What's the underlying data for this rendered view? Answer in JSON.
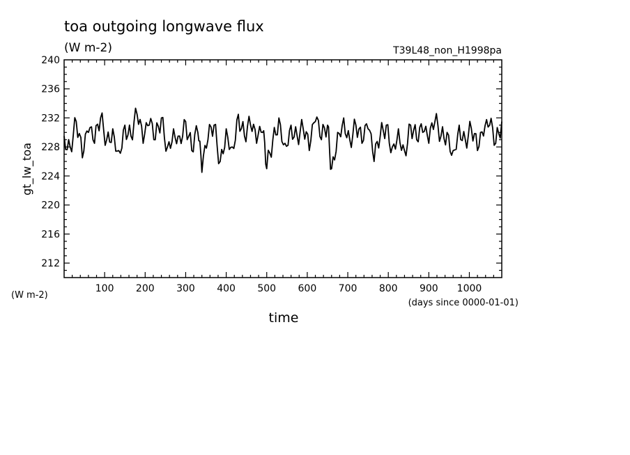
{
  "chart_data": {
    "type": "line",
    "title": "toa outgoing longwave flux",
    "units": "(W m-2)",
    "experiment": "T39L48_non_H1998pa",
    "ylabel": "gt_lw_toa",
    "ylabel_units": "(W m-2)",
    "xlabel": "time",
    "xunits": "(days since 0000-01-01)",
    "xlim": [
      0,
      1080
    ],
    "ylim": [
      210,
      240
    ],
    "xticks": [
      100,
      200,
      300,
      400,
      500,
      600,
      700,
      800,
      900,
      1000
    ],
    "yticks": [
      212,
      216,
      220,
      224,
      228,
      232,
      236,
      240
    ],
    "grid": false,
    "series": [
      {
        "color": "#000000",
        "x": [
          0,
          15,
          30,
          45,
          60,
          75,
          90,
          105,
          120,
          135,
          150,
          165,
          180,
          195,
          210,
          225,
          240,
          255,
          270,
          285,
          300,
          315,
          330,
          340,
          355,
          370,
          385,
          400,
          415,
          430,
          445,
          460,
          475,
          490,
          500,
          515,
          530,
          545,
          560,
          575,
          590,
          605,
          620,
          635,
          650,
          660,
          675,
          690,
          705,
          720,
          735,
          750,
          765,
          780,
          795,
          810,
          825,
          840,
          855,
          870,
          885,
          900,
          915,
          930,
          945,
          960,
          975,
          990,
          1005,
          1020,
          1035,
          1050,
          1065,
          1080
        ],
        "y": [
          229.5,
          228.0,
          231.5,
          226.5,
          230.0,
          228.5,
          232.0,
          229.0,
          230.5,
          227.5,
          231.0,
          229.5,
          232.5,
          228.5,
          231.0,
          229.0,
          232.0,
          228.0,
          230.5,
          229.5,
          231.5,
          227.5,
          230.0,
          224.5,
          229.0,
          231.0,
          226.0,
          230.5,
          228.0,
          232.5,
          229.5,
          231.0,
          228.5,
          230.0,
          225.0,
          229.0,
          232.0,
          228.5,
          231.0,
          229.5,
          230.5,
          227.5,
          231.5,
          229.0,
          231.0,
          225.0,
          230.0,
          232.0,
          229.0,
          231.0,
          228.5,
          230.5,
          226.0,
          229.5,
          231.0,
          228.0,
          230.5,
          227.5,
          231.0,
          229.0,
          230.0,
          228.5,
          231.5,
          229.5,
          230.0,
          227.5,
          231.0,
          229.0,
          230.5,
          227.5,
          229.5,
          231.0,
          228.5,
          231.5
        ]
      }
    ]
  }
}
